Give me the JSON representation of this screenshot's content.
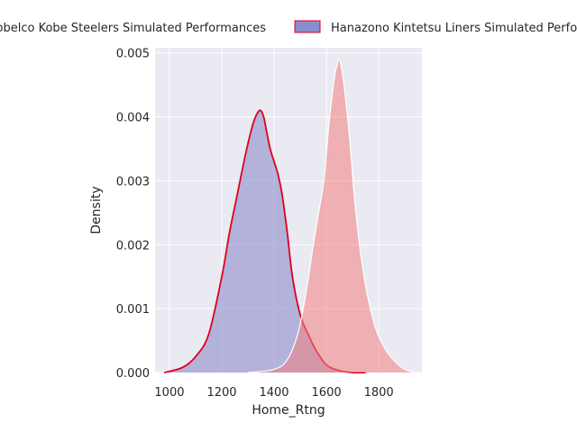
{
  "chart_data": {
    "type": "area",
    "title": "",
    "xlabel": "Home_Rtng",
    "ylabel": "Density",
    "xlim": [
      945,
      1965
    ],
    "ylim": [
      0,
      0.00508
    ],
    "x_ticks": [
      1000,
      1200,
      1400,
      1600,
      1800
    ],
    "y_ticks": [
      0.0,
      0.001,
      0.002,
      0.003,
      0.004,
      0.005
    ],
    "x_tick_labels": [
      "1000",
      "1200",
      "1400",
      "1600",
      "1800"
    ],
    "y_tick_labels": [
      "0.000",
      "0.001",
      "0.002",
      "0.003",
      "0.004",
      "0.005"
    ],
    "grid": true,
    "legend_position": "top",
    "series": [
      {
        "name": "Kobelco Kobe Steelers Simulated Performances",
        "fill": "#8c8ccc",
        "fill_opacity": 0.6,
        "line": "#e0001a",
        "x": [
          980,
          1050,
          1100,
          1150,
          1200,
          1230,
          1260,
          1290,
          1320,
          1345,
          1360,
          1370,
          1385,
          1400,
          1415,
          1430,
          1450,
          1470,
          1500,
          1530,
          1560,
          1600,
          1650,
          1700,
          1750
        ],
        "values": [
          0.0,
          8e-05,
          0.00025,
          0.0006,
          0.0015,
          0.0022,
          0.0028,
          0.0034,
          0.0039,
          0.0041,
          0.004,
          0.0038,
          0.0035,
          0.0033,
          0.0031,
          0.0028,
          0.0022,
          0.0015,
          0.0009,
          0.0006,
          0.00035,
          0.00012,
          3e-05,
          0.0,
          0.0
        ]
      },
      {
        "name": "Hanazono Kintetsu Liners Simulated Performances",
        "fill": "#f08080",
        "fill_opacity": 0.55,
        "line": "#ffffff",
        "x": [
          1300,
          1400,
          1450,
          1490,
          1520,
          1550,
          1570,
          1590,
          1610,
          1630,
          1640,
          1650,
          1660,
          1670,
          1690,
          1710,
          1740,
          1780,
          1820,
          1860,
          1900,
          1940
        ],
        "values": [
          0.0,
          5e-05,
          0.0002,
          0.0006,
          0.0012,
          0.002,
          0.0025,
          0.003,
          0.0039,
          0.0046,
          0.0048,
          0.0049,
          0.0047,
          0.0044,
          0.0036,
          0.0026,
          0.0016,
          0.0008,
          0.0004,
          0.00018,
          5e-05,
          0.0
        ]
      }
    ]
  }
}
